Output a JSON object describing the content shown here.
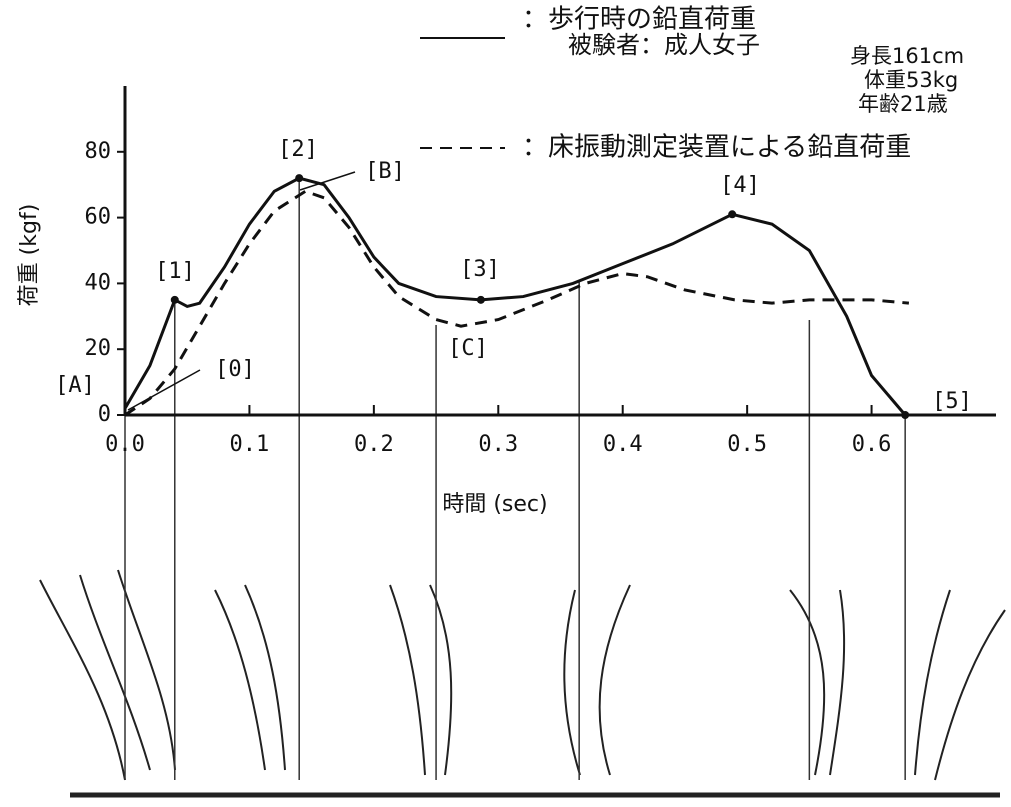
{
  "chart_data": {
    "type": "line",
    "xlabel": "時間 (sec)",
    "ylabel": "荷重 (kgf)",
    "subject": "被験者：成人女子",
    "subject_details": [
      "身長161cm",
      "体重53kg",
      "年齢21歳"
    ],
    "xlim": [
      0,
      0.7
    ],
    "ylim": [
      0,
      100
    ],
    "xticks": [
      {
        "value": 0,
        "label": "0.0"
      },
      0.1,
      0.2,
      0.3,
      0.4,
      0.5,
      0.6
    ],
    "yticks": [
      0,
      20,
      40,
      60,
      80
    ],
    "annotations": [
      "[A]",
      "[0]",
      "[1]",
      "[2]",
      "[B]",
      "[3]",
      "[C]",
      "[4]",
      "[5]"
    ],
    "series": [
      {
        "name": "：歩行時の鉛直荷重",
        "color": "#111111",
        "dash": false,
        "x": [
          0,
          0.02,
          0.04,
          0.05,
          0.06,
          0.08,
          0.1,
          0.12,
          0.14,
          0.16,
          0.18,
          0.2,
          0.22,
          0.25,
          0.286,
          0.32,
          0.36,
          0.4,
          0.44,
          0.488,
          0.52,
          0.55,
          0.58,
          0.6,
          0.627
        ],
        "values": [
          2,
          15,
          35,
          33,
          34,
          45,
          58,
          68,
          72,
          70,
          60,
          48,
          40,
          36,
          35,
          36,
          40,
          46,
          52,
          61,
          58,
          50,
          30,
          12,
          0
        ]
      },
      {
        "name": "：床振動測定装置による鉛直荷重",
        "color": "#111111",
        "dash": true,
        "x": [
          0,
          0.02,
          0.04,
          0.06,
          0.08,
          0.1,
          0.12,
          0.145,
          0.16,
          0.18,
          0.2,
          0.22,
          0.25,
          0.27,
          0.3,
          0.34,
          0.37,
          0.4,
          0.42,
          0.45,
          0.49,
          0.52,
          0.55,
          0.6,
          0.63
        ],
        "values": [
          0,
          5,
          14,
          27,
          40,
          52,
          62,
          68,
          66,
          57,
          45,
          36,
          29,
          27,
          29,
          35,
          40,
          43,
          42,
          38,
          35,
          34,
          35,
          35,
          34
        ]
      }
    ]
  }
}
